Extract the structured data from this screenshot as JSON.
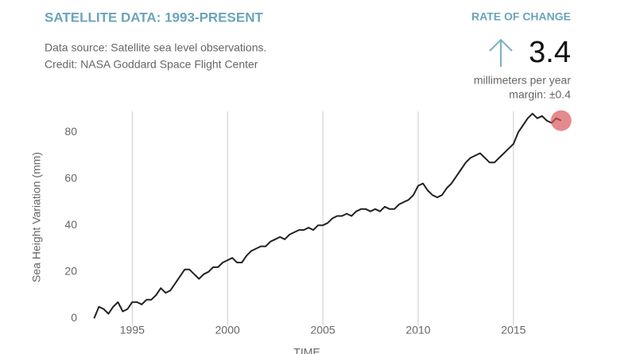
{
  "header": {
    "title": "SATELLITE DATA: 1993-PRESENT",
    "source": "Data source: Satellite sea level observations.",
    "credit": "Credit: NASA Goddard Space Flight Center"
  },
  "rate": {
    "label": "RATE OF CHANGE",
    "value": "3.4",
    "unit": "millimeters per year",
    "margin": "margin: ±0.4"
  },
  "chart_data": {
    "type": "line",
    "y_label": "Sea Height Variation (mm)",
    "x_label": "TIME",
    "xlim": [
      1992.9,
      2017.8
    ],
    "xticks": [
      1995,
      2000,
      2005,
      2010,
      2015
    ],
    "ylim": [
      -3,
      90
    ],
    "yticks": [
      0,
      20,
      40,
      60,
      80
    ],
    "grid": true,
    "series": [
      {
        "color": "#222222",
        "x": [
          1993.0,
          1993.25,
          1993.5,
          1993.75,
          1994.0,
          1994.25,
          1994.5,
          1994.75,
          1995.0,
          1995.25,
          1995.5,
          1995.75,
          1996.0,
          1996.25,
          1996.5,
          1996.75,
          1997.0,
          1997.25,
          1997.5,
          1997.75,
          1998.0,
          1998.25,
          1998.5,
          1998.75,
          1999.0,
          1999.25,
          1999.5,
          1999.75,
          2000.0,
          2000.25,
          2000.5,
          2000.75,
          2001.0,
          2001.25,
          2001.5,
          2001.75,
          2002.0,
          2002.25,
          2002.5,
          2002.75,
          2003.0,
          2003.25,
          2003.5,
          2003.75,
          2004.0,
          2004.25,
          2004.5,
          2004.75,
          2005.0,
          2005.25,
          2005.5,
          2005.75,
          2006.0,
          2006.25,
          2006.5,
          2006.75,
          2007.0,
          2007.25,
          2007.5,
          2007.75,
          2008.0,
          2008.25,
          2008.5,
          2008.75,
          2009.0,
          2009.25,
          2009.5,
          2009.75,
          2010.0,
          2010.25,
          2010.5,
          2010.75,
          2011.0,
          2011.25,
          2011.5,
          2011.75,
          2012.0,
          2012.25,
          2012.5,
          2012.75,
          2013.0,
          2013.25,
          2013.5,
          2013.75,
          2014.0,
          2014.25,
          2014.5,
          2014.75,
          2015.0,
          2015.25,
          2015.5,
          2015.75,
          2016.0,
          2016.25,
          2016.5,
          2016.75,
          2017.0,
          2017.25,
          2017.5
        ],
        "values": [
          0,
          5,
          4,
          2,
          5,
          7,
          3,
          4,
          7,
          7,
          6,
          8,
          8,
          10,
          13,
          11,
          12,
          15,
          18,
          21,
          21,
          19,
          17,
          19,
          20,
          22,
          22,
          24,
          25,
          26,
          24,
          24,
          27,
          29,
          30,
          31,
          31,
          33,
          34,
          35,
          34,
          36,
          37,
          38,
          38,
          39,
          38,
          40,
          40,
          41,
          43,
          44,
          44,
          45,
          44,
          46,
          47,
          47,
          46,
          47,
          46,
          48,
          47,
          47,
          49,
          50,
          51,
          53,
          57,
          58,
          55,
          53,
          52,
          53,
          56,
          58,
          61,
          64,
          67,
          69,
          70,
          71,
          69,
          67,
          67,
          69,
          71,
          73,
          75,
          80,
          83,
          86,
          88,
          86,
          87,
          85,
          84,
          86,
          85
        ]
      }
    ]
  }
}
